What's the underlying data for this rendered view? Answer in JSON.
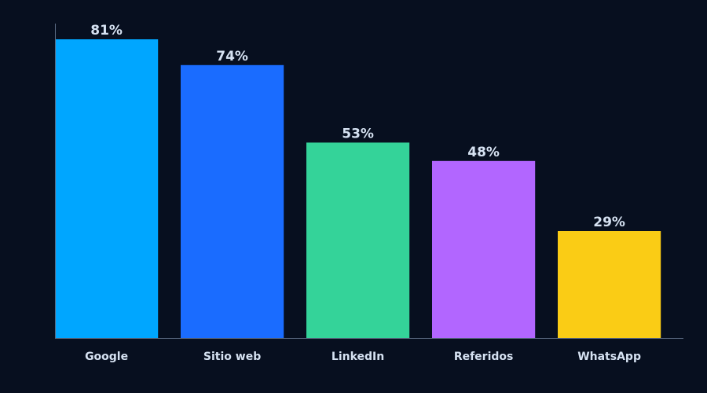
{
  "chart_data": {
    "type": "bar",
    "categories": [
      "Google",
      "Sitio web",
      "LinkedIn",
      "Referidos",
      "WhatsApp"
    ],
    "values": [
      81,
      74,
      53,
      48,
      29
    ],
    "value_labels": [
      "81%",
      "74%",
      "53%",
      "48%",
      "29%"
    ],
    "colors": [
      "#00a6ff",
      "#1a6cff",
      "#34d399",
      "#b266ff",
      "#facc15"
    ],
    "ylim": [
      0,
      81
    ],
    "grid": false,
    "title": "",
    "xlabel": "",
    "ylabel": ""
  },
  "theme": {
    "background": "#070f1f",
    "text_color": "#d6e2f2",
    "axis_color": "#5a6a82"
  }
}
